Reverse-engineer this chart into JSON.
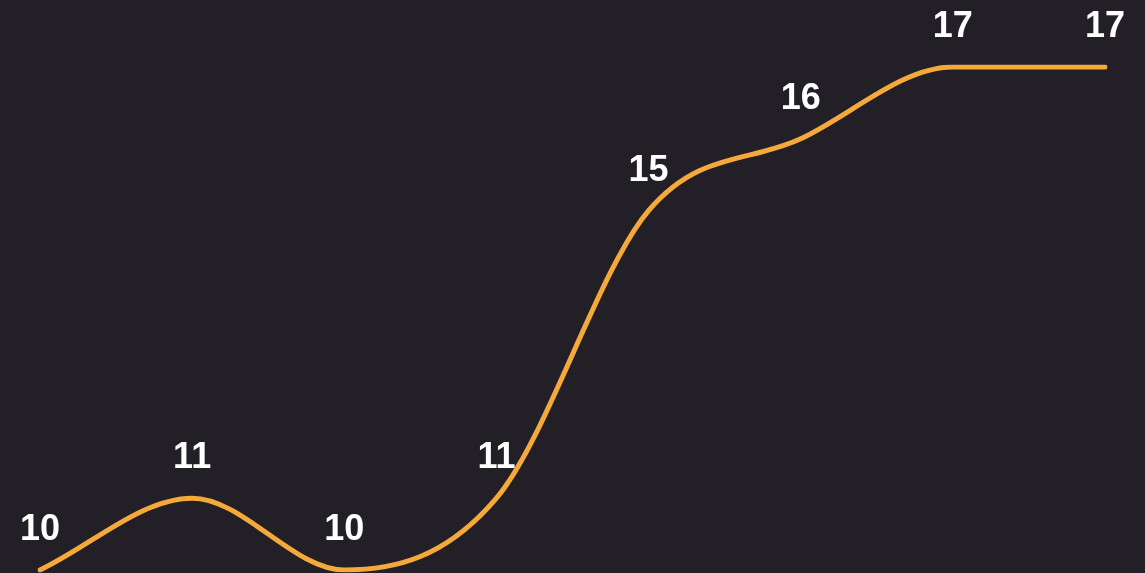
{
  "chart_data": {
    "type": "line",
    "categories": [
      null,
      null,
      null,
      null,
      null,
      null,
      null,
      null
    ],
    "series": [
      {
        "color": "#f5a93a",
        "values": [
          10,
          11,
          10,
          11,
          15,
          16,
          17,
          17
        ]
      }
    ],
    "data_labels": true,
    "legend": false,
    "marker": "none",
    "line_style": "solid"
  }
}
